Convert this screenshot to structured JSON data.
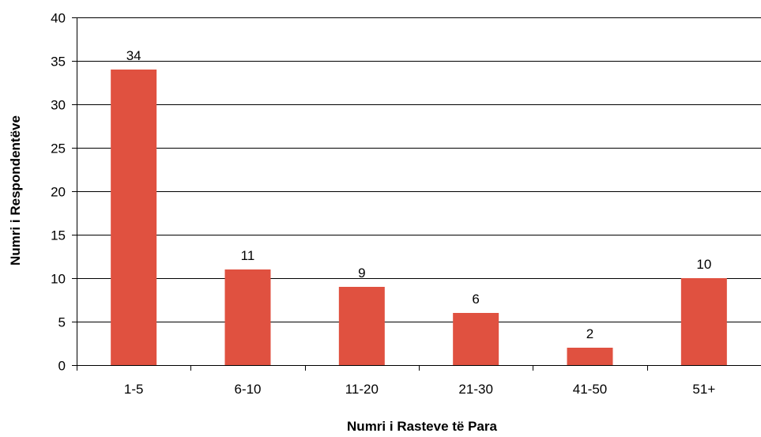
{
  "chart_data": {
    "type": "bar",
    "title": "",
    "xlabel": "Numri i Rasteve të Para",
    "ylabel": "Numri i Respondentëve",
    "categories": [
      "1-5",
      "6-10",
      "11-20",
      "21-30",
      "41-50",
      "51+"
    ],
    "values": [
      34,
      11,
      9,
      6,
      2,
      10
    ],
    "data_labels": [
      "34",
      "11",
      "9",
      "6",
      "2",
      "10"
    ],
    "ylim": [
      0,
      40
    ],
    "yticks": [
      "0",
      "5",
      "10",
      "15",
      "20",
      "25",
      "30",
      "35",
      "40"
    ],
    "grid": true,
    "legend": "none",
    "bar_color": "#e05140"
  }
}
